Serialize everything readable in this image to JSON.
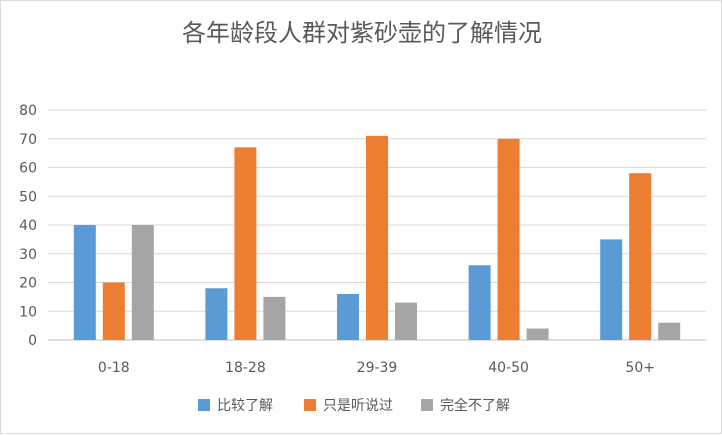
{
  "chart_data": {
    "type": "bar",
    "title": "各年龄段人群对紫砂壶的了解情况",
    "categories": [
      "0-18",
      "18-28",
      "29-39",
      "40-50",
      "50+"
    ],
    "series": [
      {
        "name": "比较了解",
        "color": "#5b9bd5",
        "values": [
          40,
          18,
          16,
          26,
          35
        ]
      },
      {
        "name": "只是听说过",
        "color": "#ed7d31",
        "values": [
          20,
          67,
          71,
          70,
          58
        ]
      },
      {
        "name": "完全不了解",
        "color": "#a5a5a5",
        "values": [
          40,
          15,
          13,
          4,
          6
        ]
      }
    ],
    "ylim": [
      0,
      80
    ],
    "yticks": [
      0,
      10,
      20,
      30,
      40,
      50,
      60,
      70,
      80
    ],
    "grid": true,
    "legend_position": "bottom"
  },
  "colors": {
    "gridline": "#d9d9d9",
    "axis": "#bfbfbf",
    "text": "#595959"
  }
}
